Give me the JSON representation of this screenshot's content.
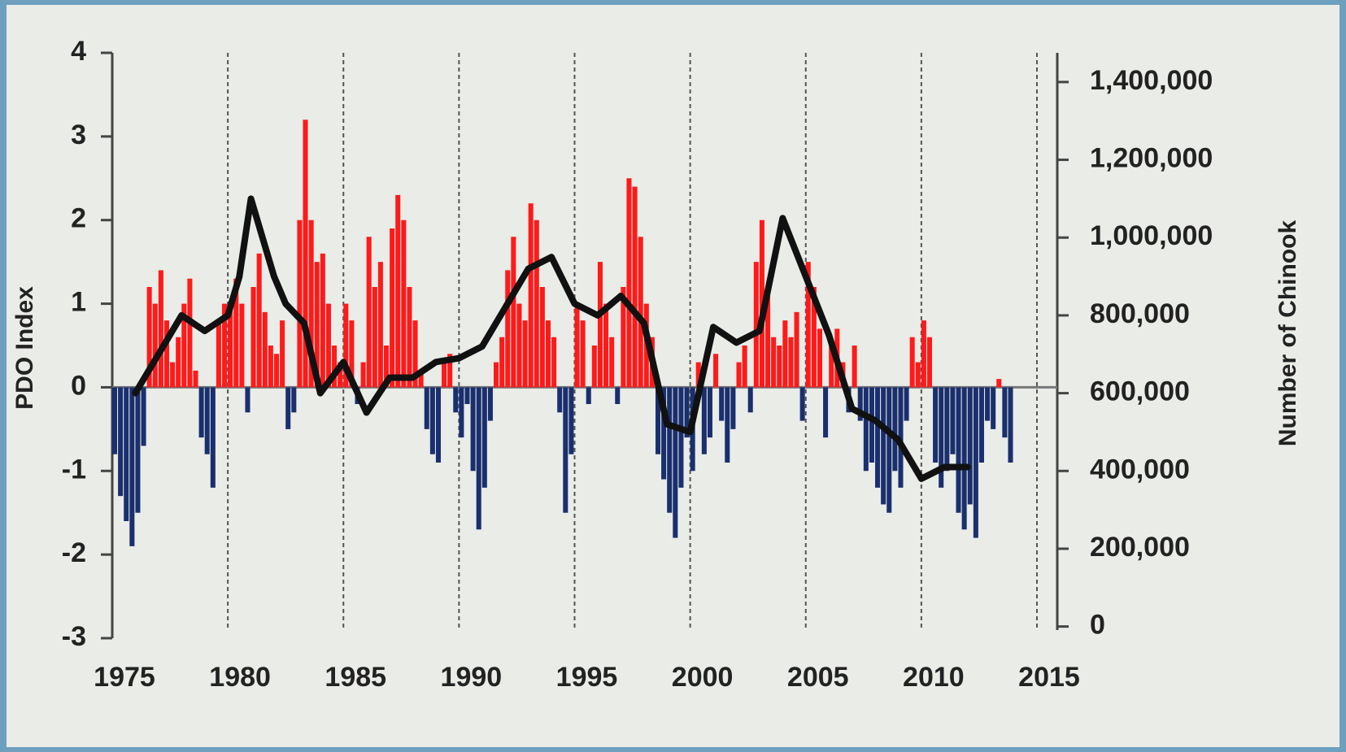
{
  "chart_data": {
    "type": "bar_line",
    "y_label": "PDO Index",
    "y2_label": "Number of Chinook",
    "xlim": [
      1975,
      2015
    ],
    "xticks": [
      1975,
      1980,
      1985,
      1990,
      1995,
      2000,
      2005,
      2010,
      2015
    ],
    "ylim": [
      -3,
      4
    ],
    "yticks": [
      -3,
      -2,
      -1,
      0,
      1,
      2,
      3,
      4
    ],
    "y2lim": [
      -30000,
      1475000
    ],
    "y2ticks": [
      0,
      {
        "value": 200000,
        "label": "200,000"
      },
      {
        "value": 400000,
        "label": "400,000"
      },
      {
        "value": 600000,
        "label": "600,000"
      },
      {
        "value": 800000,
        "label": "800,000"
      },
      {
        "value": 1000000,
        "label": "1,000,000"
      },
      {
        "value": 1200000,
        "label": "1,200,000"
      },
      {
        "value": 1400000,
        "label": "1,400,000"
      }
    ],
    "grid": true,
    "bars": {
      "positive_color": "#ff1a1a",
      "negative_color": "#1a2f6e",
      "x": [
        1975,
        1975.25,
        1975.5,
        1975.75,
        1976,
        1976.25,
        1976.5,
        1976.75,
        1977,
        1977.25,
        1977.5,
        1977.75,
        1978,
        1978.25,
        1978.5,
        1978.75,
        1979,
        1979.25,
        1979.5,
        1979.75,
        1980,
        1980.25,
        1980.5,
        1980.75,
        1981,
        1981.25,
        1981.5,
        1981.75,
        1982,
        1982.25,
        1982.5,
        1982.75,
        1983,
        1983.25,
        1983.5,
        1983.75,
        1984,
        1984.25,
        1984.5,
        1984.75,
        1985,
        1985.25,
        1985.5,
        1985.75,
        1986,
        1986.25,
        1986.5,
        1986.75,
        1987,
        1987.25,
        1987.5,
        1987.75,
        1988,
        1988.25,
        1988.5,
        1988.75,
        1989,
        1989.25,
        1989.5,
        1989.75,
        1990,
        1990.25,
        1990.5,
        1990.75,
        1991,
        1991.25,
        1991.5,
        1991.75,
        1992,
        1992.25,
        1992.5,
        1992.75,
        1993,
        1993.25,
        1993.5,
        1993.75,
        1994,
        1994.25,
        1994.5,
        1994.75,
        1995,
        1995.25,
        1995.5,
        1995.75,
        1996,
        1996.25,
        1996.5,
        1996.75,
        1997,
        1997.25,
        1997.5,
        1997.75,
        1998,
        1998.25,
        1998.5,
        1998.75,
        1999,
        1999.25,
        1999.5,
        1999.75,
        2000,
        2000.25,
        2000.5,
        2000.75,
        2001,
        2001.25,
        2001.5,
        2001.75,
        2002,
        2002.25,
        2002.5,
        2002.75,
        2003,
        2003.25,
        2003.5,
        2003.75,
        2004,
        2004.25,
        2004.5,
        2004.75,
        2005,
        2005.25,
        2005.5,
        2005.75,
        2006,
        2006.25,
        2006.5,
        2006.75,
        2007,
        2007.25,
        2007.5,
        2007.75,
        2008,
        2008.25,
        2008.5,
        2008.75,
        2009,
        2009.25,
        2009.5,
        2009.75,
        2010,
        2010.25,
        2010.5,
        2010.75,
        2011,
        2011.25,
        2011.5,
        2011.75,
        2012,
        2012.25,
        2012.5,
        2012.75,
        2013,
        2013.25,
        2013.5,
        2013.75
      ],
      "values": [
        -0.8,
        -1.3,
        -1.6,
        -1.9,
        -1.5,
        -0.7,
        1.2,
        1.0,
        1.4,
        0.8,
        0.3,
        0.6,
        1.0,
        1.3,
        0.2,
        -0.6,
        -0.8,
        -1.2,
        0.8,
        1.0,
        1.0,
        1.3,
        1.0,
        -0.3,
        1.2,
        1.6,
        0.9,
        0.5,
        0.4,
        0.8,
        -0.5,
        -0.3,
        2.0,
        3.2,
        2.0,
        1.5,
        1.6,
        1.0,
        0.5,
        0.3,
        1.0,
        0.8,
        -0.2,
        0.3,
        1.8,
        1.2,
        1.5,
        0.5,
        1.9,
        2.3,
        2.0,
        1.2,
        0.8,
        0.2,
        -0.5,
        -0.8,
        -0.9,
        0.3,
        0.4,
        -0.3,
        -0.6,
        -0.2,
        -1.0,
        -1.7,
        -1.2,
        -0.4,
        0.3,
        0.6,
        1.4,
        1.8,
        1.0,
        0.8,
        2.2,
        2.0,
        1.2,
        0.8,
        0.6,
        -0.3,
        -1.5,
        -0.8,
        1.0,
        0.8,
        -0.2,
        0.5,
        1.5,
        1.0,
        0.6,
        -0.2,
        1.2,
        2.5,
        2.4,
        1.8,
        1.0,
        0.6,
        -0.8,
        -1.1,
        -1.5,
        -1.8,
        -1.2,
        -0.6,
        -1.0,
        0.3,
        -0.8,
        -0.6,
        0.4,
        -0.4,
        -0.9,
        -0.5,
        0.3,
        0.5,
        -0.3,
        1.5,
        2.0,
        1.2,
        0.6,
        0.5,
        0.8,
        0.6,
        0.9,
        -0.4,
        1.5,
        1.2,
        0.7,
        -0.6,
        0.5,
        0.7,
        0.3,
        -0.3,
        0.5,
        -0.4,
        -1.0,
        -0.9,
        -1.2,
        -1.4,
        -1.5,
        -1.0,
        -1.2,
        -0.4,
        0.6,
        0.3,
        0.8,
        0.6,
        -0.9,
        -1.2,
        -1.0,
        -0.8,
        -1.5,
        -1.7,
        -1.4,
        -1.8,
        -0.9,
        -0.4,
        -0.5,
        0.1,
        -0.6,
        -0.9
      ]
    },
    "line": {
      "axis": "y2",
      "color": "#111111",
      "x": [
        1976,
        1977,
        1978,
        1979,
        1980,
        1980.5,
        1981,
        1982,
        1982.5,
        1983.3,
        1984,
        1985,
        1986,
        1987,
        1988,
        1989,
        1990,
        1991,
        1992,
        1993,
        1994,
        1995,
        1996,
        1997,
        1998,
        1999,
        2000,
        2001,
        2002,
        2003,
        2004,
        2005,
        2006,
        2007,
        2008,
        2009,
        2010,
        2011,
        2012
      ],
      "values": [
        600000,
        700000,
        800000,
        760000,
        800000,
        900000,
        1100000,
        900000,
        830000,
        780000,
        600000,
        680000,
        550000,
        640000,
        640000,
        680000,
        690000,
        720000,
        820000,
        920000,
        950000,
        830000,
        800000,
        850000,
        780000,
        520000,
        500000,
        770000,
        730000,
        760000,
        1050000,
        900000,
        750000,
        560000,
        530000,
        480000,
        380000,
        410000,
        410000
      ]
    }
  }
}
